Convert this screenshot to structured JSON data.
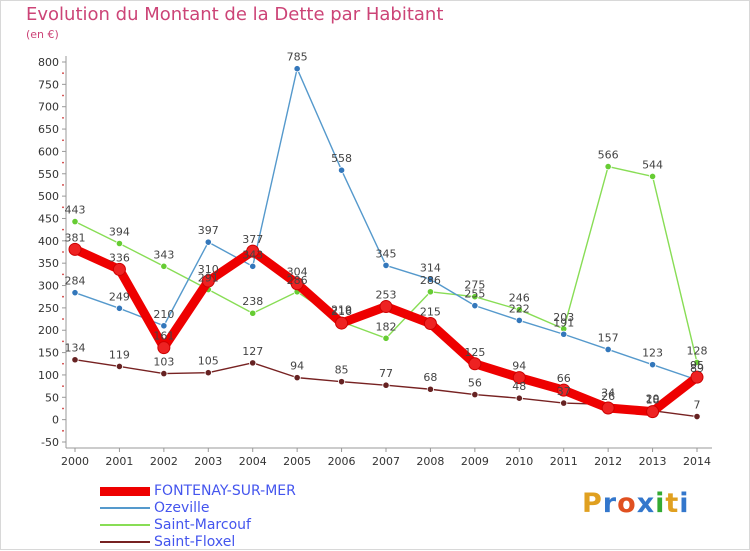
{
  "header": {
    "title": "Evolution du Montant de la Dette par Habitant",
    "unit": "(en €)"
  },
  "logo": {
    "text": "Proxiti",
    "colors": [
      "#e0a020",
      "#3377cc",
      "#e05020",
      "#3377cc",
      "#33aa33",
      "#e0a020",
      "#3377cc"
    ]
  },
  "chart_data": {
    "type": "line",
    "title": "Evolution du Montant de la Dette par Habitant",
    "ylabel": "(en €)",
    "xlabel": "",
    "ylim": [
      -50,
      800
    ],
    "ytick_step": 50,
    "grid": false,
    "legend_position": "bottom-left",
    "x": [
      "2000",
      "2001",
      "2002",
      "2003",
      "2004",
      "2005",
      "2006",
      "2007",
      "2008",
      "2009",
      "2010",
      "2011",
      "2012",
      "2013",
      "2014"
    ],
    "series": [
      {
        "name": "FONTENAY-SUR-MER",
        "color": "#ee0000",
        "marker_color": "#ee2222",
        "values": [
          381,
          336,
          161,
          310,
          377,
          304,
          216,
          253,
          215,
          125,
          94,
          66,
          26,
          18,
          95
        ],
        "labels": [
          "381",
          "336",
          "161",
          "310",
          "377",
          "304",
          "216",
          "253",
          "215",
          "125",
          "94",
          "66",
          "26",
          "18",
          "95"
        ]
      },
      {
        "name": "Ozeville",
        "color": "#5599cc",
        "marker_color": "#3377bb",
        "values": [
          284,
          249,
          210,
          397,
          343,
          785,
          558,
          345,
          314,
          255,
          222,
          191,
          157,
          123,
          89
        ],
        "labels": [
          "284",
          "249",
          "210",
          "397",
          "343",
          "785",
          "558",
          "345",
          "314",
          "255",
          "222",
          "191",
          "157",
          "123",
          "89"
        ]
      },
      {
        "name": "Saint-Marcouf",
        "color": "#88dd55",
        "marker_color": "#66cc33",
        "values": [
          443,
          394,
          343,
          291,
          238,
          286,
          219,
          182,
          286,
          275,
          246,
          203,
          566,
          544,
          128
        ],
        "labels": [
          "443",
          "394",
          "343",
          "291",
          "238",
          "286",
          "219",
          "182",
          "286",
          "275",
          "246",
          "203",
          "566",
          "544",
          "128"
        ]
      },
      {
        "name": "Saint-Floxel",
        "color": "#772222",
        "marker_color": "#662222",
        "values": [
          134,
          119,
          103,
          105,
          127,
          94,
          85,
          77,
          68,
          56,
          48,
          37,
          34,
          20,
          7
        ],
        "labels": [
          "134",
          "119",
          "103",
          "105",
          "127",
          "94",
          "85",
          "77",
          "68",
          "56",
          "48",
          "37",
          "34",
          "20",
          "7"
        ]
      }
    ]
  }
}
